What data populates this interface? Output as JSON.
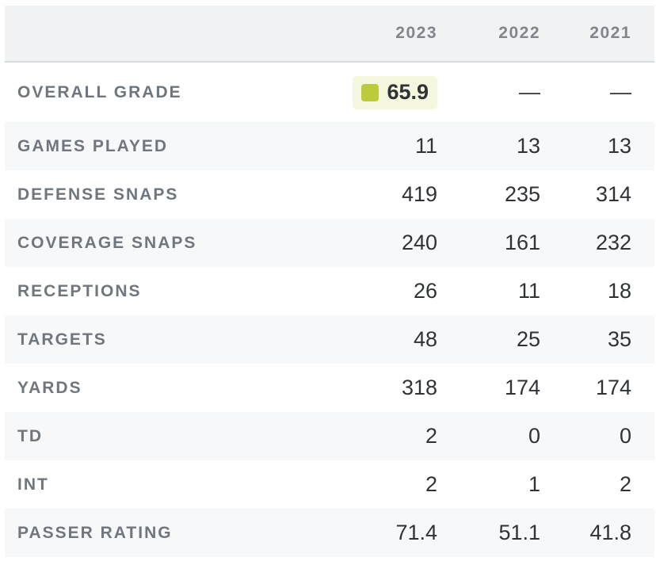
{
  "columns": [
    "2023",
    "2022",
    "2021"
  ],
  "grade": {
    "label": "OVERALL GRADE",
    "value_2023": "65.9",
    "value_2022": "—",
    "value_2021": "—",
    "badge_color": "#bccb3c"
  },
  "rows": [
    {
      "label": "GAMES PLAYED",
      "values": [
        "11",
        "13",
        "13"
      ]
    },
    {
      "label": "DEFENSE SNAPS",
      "values": [
        "419",
        "235",
        "314"
      ]
    },
    {
      "label": "COVERAGE SNAPS",
      "values": [
        "240",
        "161",
        "232"
      ]
    },
    {
      "label": "RECEPTIONS",
      "values": [
        "26",
        "11",
        "18"
      ]
    },
    {
      "label": "TARGETS",
      "values": [
        "48",
        "25",
        "35"
      ]
    },
    {
      "label": "YARDS",
      "values": [
        "318",
        "174",
        "174"
      ]
    },
    {
      "label": "TD",
      "values": [
        "2",
        "0",
        "0"
      ]
    },
    {
      "label": "INT",
      "values": [
        "2",
        "1",
        "2"
      ]
    },
    {
      "label": "PASSER RATING",
      "values": [
        "71.4",
        "51.1",
        "41.8"
      ]
    }
  ]
}
